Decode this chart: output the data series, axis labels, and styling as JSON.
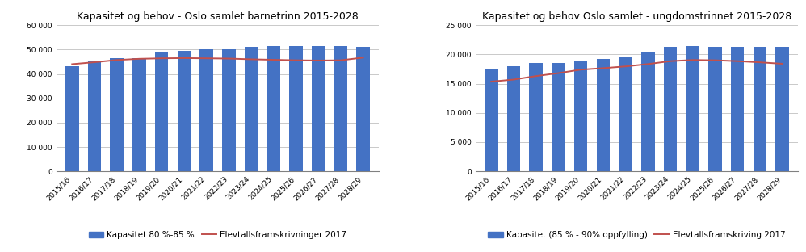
{
  "left": {
    "title": "Kapasitet og behov - Oslo samlet barnetrinn 2015-2028",
    "categories": [
      "2015/16",
      "2016/17",
      "2017/18",
      "2018/19",
      "2019/20",
      "2020/21",
      "2021/22",
      "2022/23",
      "2023/24",
      "2024/25",
      "2025/26",
      "2026/27",
      "2027/28",
      "2028/29"
    ],
    "bar_values": [
      43000,
      45000,
      46500,
      46500,
      49000,
      49500,
      50000,
      50000,
      51000,
      51500,
      51500,
      51500,
      51500,
      51000
    ],
    "line_values": [
      44000,
      44800,
      45700,
      46200,
      46400,
      46500,
      46400,
      46300,
      46000,
      45800,
      45600,
      45500,
      45600,
      46700
    ],
    "ylim": [
      0,
      60000
    ],
    "yticks": [
      0,
      10000,
      20000,
      30000,
      40000,
      50000,
      60000
    ],
    "bar_color": "#4472C4",
    "line_color": "#C0504D",
    "legend_bar": "Kapasitet 80 %-85 %",
    "legend_line": "Elevtallsframskrivninger 2017"
  },
  "right": {
    "title": "Kapasitet og behov Oslo samlet - ungdomstrinnet 2015-2028",
    "categories": [
      "2015/16",
      "2016/17",
      "2017/18",
      "2018/19",
      "2019/20",
      "2020/21",
      "2021/22",
      "2022/23",
      "2023/24",
      "2024/25",
      "2025/26",
      "2026/27",
      "2027/28",
      "2028/29"
    ],
    "bar_values": [
      17500,
      18000,
      18500,
      18600,
      19000,
      19200,
      19500,
      20300,
      21300,
      21400,
      21300,
      21300,
      21300,
      21300
    ],
    "line_values": [
      15350,
      15700,
      16300,
      16800,
      17400,
      17650,
      17950,
      18350,
      18850,
      19050,
      19000,
      18850,
      18650,
      18400
    ],
    "ylim": [
      0,
      25000
    ],
    "yticks": [
      0,
      5000,
      10000,
      15000,
      20000,
      25000
    ],
    "bar_color": "#4472C4",
    "line_color": "#C0504D",
    "legend_bar": "Kapasitet (85 % - 90% oppfylling)",
    "legend_line": "Elevtallsframskriving 2017"
  },
  "fig_width": 9.98,
  "fig_height": 3.12,
  "dpi": 100,
  "bg_color": "#FFFFFF",
  "grid_color": "#C0C0C0",
  "spine_color": "#808080",
  "bar_width": 0.6,
  "title_fontsize": 9,
  "tick_fontsize": 6.5,
  "legend_fontsize": 7.5
}
